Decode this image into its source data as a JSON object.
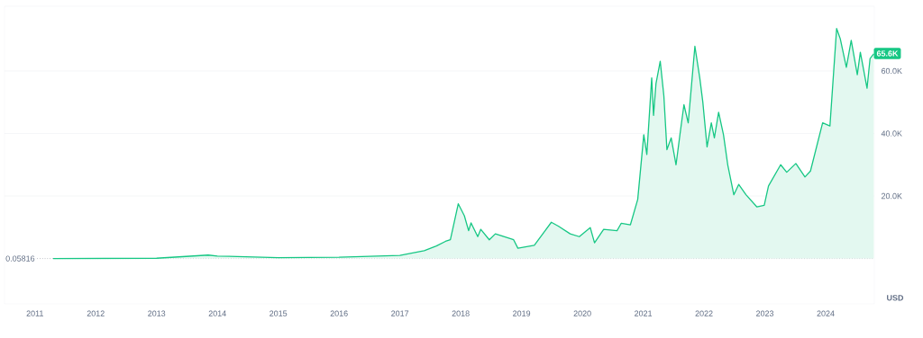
{
  "chart_data": {
    "type": "area",
    "ylabel": "USD",
    "color": "#16c784",
    "grid": "y",
    "x": [
      2011.3,
      2013.0,
      2013.85,
      2014.0,
      2015.0,
      2016.0,
      2017.0,
      2017.4,
      2017.6,
      2017.75,
      2017.83,
      2017.96,
      2018.06,
      2018.13,
      2018.17,
      2018.28,
      2018.33,
      2018.47,
      2018.57,
      2018.87,
      2018.94,
      2019.21,
      2019.49,
      2019.61,
      2019.8,
      2019.95,
      2020.13,
      2020.2,
      2020.35,
      2020.57,
      2020.64,
      2020.79,
      2020.91,
      2021.01,
      2021.06,
      2021.14,
      2021.17,
      2021.21,
      2021.28,
      2021.34,
      2021.39,
      2021.46,
      2021.54,
      2021.61,
      2021.67,
      2021.74,
      2021.85,
      2021.93,
      2021.98,
      2022.05,
      2022.12,
      2022.17,
      2022.24,
      2022.32,
      2022.39,
      2022.49,
      2022.57,
      2022.69,
      2022.87,
      2022.99,
      2023.06,
      2023.26,
      2023.36,
      2023.51,
      2023.66,
      2023.75,
      2023.95,
      2024.07,
      2024.18,
      2024.24,
      2024.34,
      2024.42,
      2024.52,
      2024.57,
      2024.68,
      2024.73,
      2024.79
    ],
    "values": [
      0,
      100,
      1100,
      800,
      300,
      400,
      1000,
      2500,
      4000,
      5500,
      6000,
      17500,
      13700,
      8900,
      11400,
      7000,
      9350,
      6000,
      7900,
      6000,
      3300,
      4200,
      11600,
      10300,
      7900,
      7000,
      9900,
      5000,
      9350,
      8900,
      11300,
      10800,
      18900,
      39600,
      33300,
      57800,
      45800,
      55900,
      63100,
      52000,
      34800,
      38600,
      30000,
      40500,
      49200,
      43400,
      67900,
      57800,
      50100,
      35700,
      43400,
      38600,
      46800,
      39600,
      30000,
      20400,
      23700,
      20400,
      16500,
      17000,
      23200,
      30000,
      27600,
      30400,
      26100,
      28000,
      43400,
      42400,
      73600,
      70300,
      61200,
      69800,
      58800,
      66000,
      54500,
      64000,
      65500
    ],
    "xlim": [
      2010.5,
      2024.8
    ],
    "ylim": [
      -14500,
      80700
    ],
    "xticks": [
      2011,
      2012,
      2013,
      2014,
      2015,
      2016,
      2017,
      2018,
      2019,
      2020,
      2021,
      2022,
      2023,
      2024
    ],
    "yticks": [
      {
        "value": 20000,
        "label": "20.0K"
      },
      {
        "value": 40000,
        "label": "40.0K"
      },
      {
        "value": 60000,
        "label": "60.0K"
      }
    ],
    "ref_lines": [
      {
        "axis": "y",
        "value": 0.05816,
        "label": "0.05816",
        "color": "#9aa0a8",
        "line_style": "dotted"
      }
    ],
    "annotations": [
      {
        "text": "65.6K",
        "x": 2024.79,
        "y": 65600
      }
    ]
  }
}
